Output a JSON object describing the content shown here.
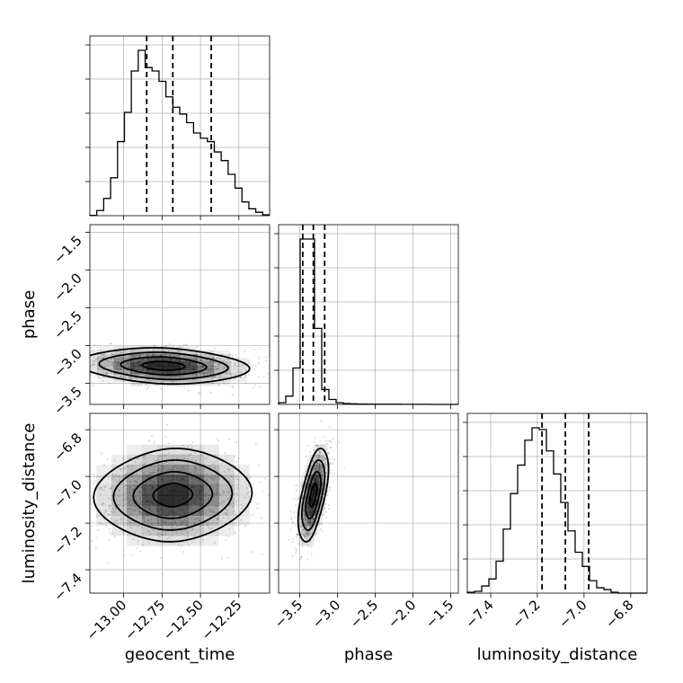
{
  "chart_data": {
    "type": "corner",
    "parameters": [
      "geocent_time",
      "phase",
      "luminosity_distance"
    ],
    "axis_labels": {
      "x": [
        "geocent_time",
        "phase",
        "luminosity_distance"
      ],
      "y": [
        "phase",
        "luminosity_distance"
      ]
    },
    "ranges": {
      "geocent_time": [
        -13.22,
        -12.05
      ],
      "phase": [
        -3.78,
        -1.4
      ],
      "luminosity_distance": [
        -7.5,
        -6.73
      ]
    },
    "ticks": {
      "geocent_time": {
        "values": [
          -13.0,
          -12.75,
          -12.5,
          -12.25
        ],
        "labels": [
          "−13.00",
          "−12.75",
          "−12.50",
          "−12.25"
        ]
      },
      "phase": {
        "values": [
          -3.5,
          -3.0,
          -2.5,
          -2.0,
          -1.5
        ],
        "labels": [
          "−3.5",
          "−3.0",
          "−2.5",
          "−2.0",
          "−1.5"
        ]
      },
      "luminosity_distance": {
        "values": [
          -7.4,
          -7.2,
          -7.0,
          -6.8
        ],
        "labels": [
          "−7.4",
          "−7.2",
          "−7.0",
          "−6.8"
        ]
      }
    },
    "quantiles": {
      "geocent_time": [
        -12.85,
        -12.68,
        -12.43
      ],
      "phase": [
        -3.46,
        -3.32,
        -3.17
      ],
      "luminosity_distance": [
        -7.18,
        -7.08,
        -6.98
      ]
    },
    "histograms": {
      "geocent_time": {
        "x0": -13.22,
        "dx": 0.045,
        "counts": [
          0.2,
          3,
          10,
          22,
          43,
          60,
          84,
          96,
          86,
          84,
          78,
          69,
          63,
          59,
          54,
          48,
          45,
          43,
          37,
          32,
          24,
          16,
          8,
          4,
          2,
          0.5
        ]
      },
      "phase": {
        "x0": -3.78,
        "dx": 0.0952,
        "counts": [
          1,
          5,
          22,
          100,
          100,
          46,
          9,
          3,
          1,
          0.5,
          0.3,
          0.2,
          0.2,
          0.1,
          0.1,
          0.1,
          0.1,
          0.05,
          0.05,
          0.05,
          0.05,
          0,
          0,
          0,
          0
        ]
      },
      "luminosity_distance": {
        "x0": -7.5,
        "dx": 0.0308,
        "counts": [
          0.5,
          1,
          4,
          8,
          18,
          36,
          56,
          72,
          86,
          93,
          92,
          80,
          67,
          51,
          35,
          23,
          15,
          7,
          3,
          2,
          0.5,
          0,
          0,
          0,
          0
        ]
      }
    },
    "density_2d": [
      {
        "x": "geocent_time",
        "y": "phase",
        "center": [
          -12.74,
          -3.27
        ],
        "sigma": [
          0.25,
          0.12
        ],
        "rho": -0.15
      },
      {
        "x": "geocent_time",
        "y": "luminosity_distance",
        "center": [
          -12.68,
          -7.08
        ],
        "sigma": [
          0.23,
          0.1
        ],
        "rho": 0.05
      },
      {
        "x": "phase",
        "y": "luminosity_distance",
        "center": [
          -3.32,
          -7.08
        ],
        "sigma": [
          0.09,
          0.1
        ],
        "rho": 0.55
      }
    ],
    "grid": true,
    "colors": {
      "hist": "#000000",
      "density": "#000000",
      "grid": "#b0b0b0",
      "quantile": "#000000"
    }
  }
}
